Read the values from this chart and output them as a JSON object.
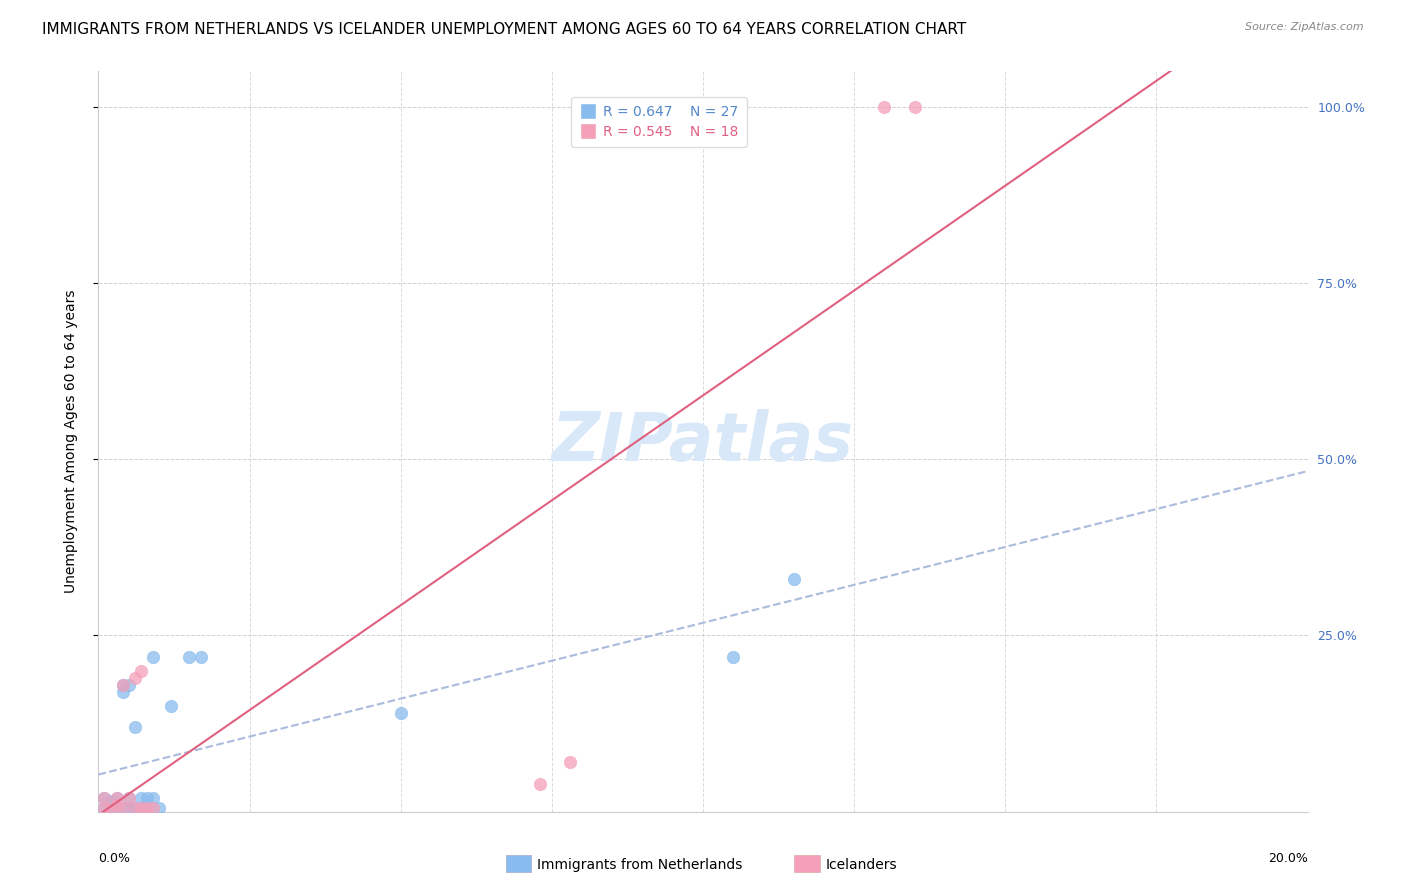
{
  "title": "IMMIGRANTS FROM NETHERLANDS VS ICELANDER UNEMPLOYMENT AMONG AGES 60 TO 64 YEARS CORRELATION CHART",
  "source": "Source: ZipAtlas.com",
  "ylabel": "Unemployment Among Ages 60 to 64 years",
  "series1_label": "Immigrants from Netherlands",
  "series1_R": "0.647",
  "series1_N": "27",
  "series1_color": "#88bbee",
  "series1_line_color": "#5588cc",
  "series2_label": "Icelanders",
  "series2_R": "0.545",
  "series2_N": "18",
  "series2_color": "#f4a0b8",
  "series2_line_color": "#e06080",
  "background_color": "#ffffff",
  "watermark_text": "ZIPatlas",
  "watermark_color": "#d8e8f8",
  "blue_points_x": [
    0.001,
    0.001,
    0.002,
    0.002,
    0.003,
    0.003,
    0.004,
    0.004,
    0.004,
    0.005,
    0.005,
    0.005,
    0.006,
    0.006,
    0.007,
    0.007,
    0.008,
    0.008,
    0.009,
    0.009,
    0.01,
    0.012,
    0.015,
    0.017,
    0.05,
    0.105,
    0.115
  ],
  "blue_points_y": [
    0.005,
    0.02,
    0.005,
    0.015,
    0.01,
    0.02,
    0.005,
    0.17,
    0.18,
    0.005,
    0.02,
    0.18,
    0.005,
    0.12,
    0.005,
    0.02,
    0.005,
    0.02,
    0.02,
    0.22,
    0.005,
    0.15,
    0.22,
    0.22,
    0.14,
    0.22,
    0.33
  ],
  "pink_points_x": [
    0.001,
    0.001,
    0.002,
    0.003,
    0.003,
    0.004,
    0.004,
    0.005,
    0.006,
    0.006,
    0.007,
    0.007,
    0.008,
    0.009,
    0.073,
    0.078,
    0.13,
    0.135
  ],
  "pink_points_y": [
    0.005,
    0.02,
    0.005,
    0.01,
    0.02,
    0.005,
    0.18,
    0.02,
    0.005,
    0.19,
    0.005,
    0.2,
    0.005,
    0.005,
    0.04,
    0.07,
    1.0,
    1.0
  ],
  "xlim": [
    0.0,
    0.2
  ],
  "ylim": [
    0.0,
    1.05
  ],
  "ytick_values": [
    0.25,
    0.5,
    0.75,
    1.0
  ],
  "ytick_labels": [
    "25.0%",
    "50.0%",
    "75.0%",
    "100.0%"
  ],
  "right_tick_color": "#4472c4",
  "title_fontsize": 11,
  "axis_label_fontsize": 10,
  "tick_fontsize": 9,
  "legend_fontsize": 10,
  "marker_size": 80
}
